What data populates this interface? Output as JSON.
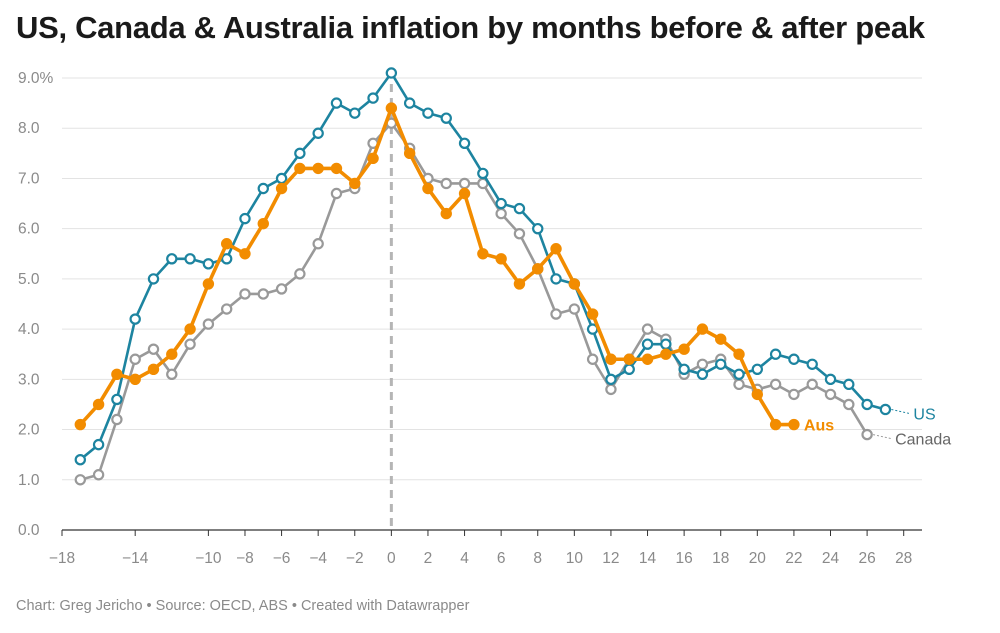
{
  "title": "US, Canada & Australia inflation by months before & after peak",
  "footer": "Chart: Greg Jericho • Source: OECD, ABS • Created with Datawrapper",
  "chart_data": {
    "type": "line",
    "title": "US, Canada & Australia inflation by months before & after peak",
    "xlabel": "",
    "ylabel": "",
    "xlim": [
      -18,
      29
    ],
    "ylim": [
      0,
      9
    ],
    "xticks": [
      -18,
      -14,
      -10,
      -8,
      -6,
      -4,
      -2,
      0,
      2,
      4,
      6,
      8,
      10,
      12,
      14,
      16,
      18,
      20,
      22,
      24,
      26,
      28
    ],
    "xtick_labels": [
      "−18",
      "−14",
      "−10",
      "−8",
      "−6",
      "−4",
      "−2",
      "0",
      "2",
      "4",
      "6",
      "8",
      "10",
      "12",
      "14",
      "16",
      "18",
      "20",
      "22",
      "24",
      "26",
      "28"
    ],
    "yticks": [
      0,
      1,
      2,
      3,
      4,
      5,
      6,
      7,
      8,
      9
    ],
    "ytick_labels": [
      "0.0",
      "1.0",
      "2.0",
      "3.0",
      "4.0",
      "5.0",
      "6.0",
      "7.0",
      "8.0",
      "9.0%"
    ],
    "grid": true,
    "reference_line_x": 0,
    "series": [
      {
        "name": "Canada",
        "color": "#999999",
        "marker": "hollow",
        "x": [
          -17,
          -16,
          -15,
          -14,
          -13,
          -12,
          -11,
          -10,
          -9,
          -8,
          -7,
          -6,
          -5,
          -4,
          -3,
          -2,
          -1,
          0,
          1,
          2,
          3,
          4,
          5,
          6,
          7,
          8,
          9,
          10,
          11,
          12,
          13,
          14,
          15,
          16,
          17,
          18,
          19,
          20,
          21,
          22,
          23,
          24,
          25,
          26
        ],
        "values": [
          1.0,
          1.1,
          2.2,
          3.4,
          3.6,
          3.1,
          3.7,
          4.1,
          4.4,
          4.7,
          4.7,
          4.8,
          5.1,
          5.7,
          6.7,
          6.8,
          7.7,
          8.1,
          7.6,
          7.0,
          6.9,
          6.9,
          6.9,
          6.3,
          5.9,
          5.2,
          4.3,
          4.4,
          3.4,
          2.8,
          3.4,
          4.0,
          3.8,
          3.1,
          3.3,
          3.4,
          2.9,
          2.8,
          2.9,
          2.7,
          2.9,
          2.7,
          2.5,
          1.9
        ]
      },
      {
        "name": "US",
        "color": "#1d84a0",
        "marker": "hollow",
        "x": [
          -17,
          -16,
          -15,
          -14,
          -13,
          -12,
          -11,
          -10,
          -9,
          -8,
          -7,
          -6,
          -5,
          -4,
          -3,
          -2,
          -1,
          0,
          1,
          2,
          3,
          4,
          5,
          6,
          7,
          8,
          9,
          10,
          11,
          12,
          13,
          14,
          15,
          16,
          17,
          18,
          19,
          20,
          21,
          22,
          23,
          24,
          25,
          26,
          27
        ],
        "values": [
          1.4,
          1.7,
          2.6,
          4.2,
          5.0,
          5.4,
          5.4,
          5.3,
          5.4,
          6.2,
          6.8,
          7.0,
          7.5,
          7.9,
          8.5,
          8.3,
          8.6,
          9.1,
          8.5,
          8.3,
          8.2,
          7.7,
          7.1,
          6.5,
          6.4,
          6.0,
          5.0,
          4.9,
          4.0,
          3.0,
          3.2,
          3.7,
          3.7,
          3.2,
          3.1,
          3.3,
          3.1,
          3.2,
          3.5,
          3.4,
          3.3,
          3.0,
          2.9,
          2.5,
          2.4
        ]
      },
      {
        "name": "Aus",
        "color": "#f28c00",
        "marker": "filled",
        "x": [
          -17,
          -16,
          -15,
          -14,
          -13,
          -12,
          -11,
          -10,
          -9,
          -8,
          -7,
          -6,
          -5,
          -4,
          -3,
          -2,
          -1,
          0,
          1,
          2,
          3,
          4,
          5,
          6,
          7,
          8,
          9,
          10,
          11,
          12,
          13,
          14,
          15,
          16,
          17,
          18,
          19,
          20,
          21,
          22
        ],
        "values": [
          2.1,
          2.5,
          3.1,
          3.0,
          3.2,
          3.5,
          4.0,
          4.9,
          5.7,
          5.5,
          6.1,
          6.8,
          7.2,
          7.2,
          7.2,
          6.9,
          7.4,
          8.4,
          7.5,
          6.8,
          6.3,
          6.7,
          5.5,
          5.4,
          4.9,
          5.2,
          5.6,
          4.9,
          4.3,
          3.4,
          3.4,
          3.4,
          3.5,
          3.6,
          4.0,
          3.8,
          3.5,
          2.7,
          2.1,
          2.1
        ]
      }
    ]
  }
}
